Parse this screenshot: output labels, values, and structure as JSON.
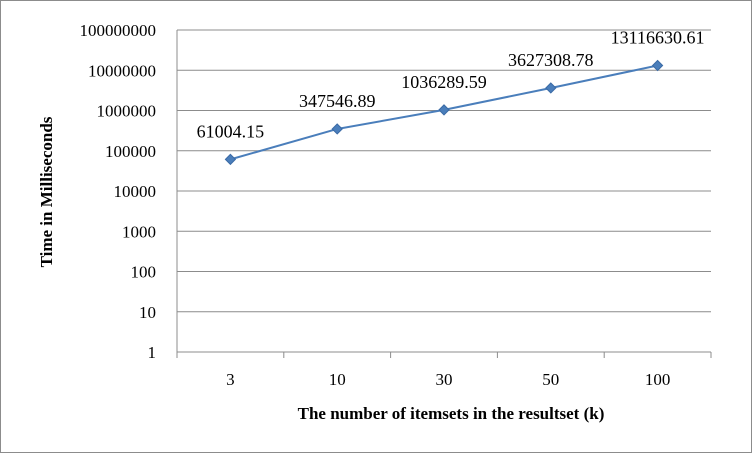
{
  "chart_data": {
    "type": "line",
    "title": "",
    "xlabel": "The number of itemsets in the resultset (k)",
    "ylabel": "Time in Milliseconds",
    "y_scale": "log",
    "ylim": [
      1,
      100000000
    ],
    "grid": true,
    "legend": "none",
    "categories": [
      "3",
      "10",
      "30",
      "50",
      "100"
    ],
    "y_ticks": [
      "1",
      "10",
      "100",
      "1000",
      "10000",
      "100000",
      "1000000",
      "10000000",
      "100000000"
    ],
    "series": [
      {
        "values": [
          61004.15,
          347546.89,
          1036289.59,
          3627308.78,
          13116630.61
        ],
        "data_labels": [
          "61004.15",
          "347546.89",
          "1036289.59",
          "3627308.78",
          "13116630.61"
        ],
        "color": "#4A7EBB",
        "marker": "diamond"
      }
    ]
  }
}
